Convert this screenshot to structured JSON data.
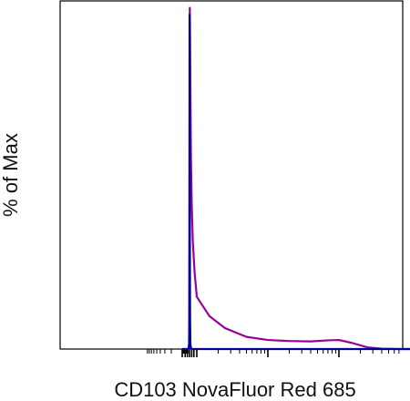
{
  "chart_data": {
    "type": "line",
    "title": "",
    "xlabel": "CD103 NovaFluor Red 685",
    "ylabel": "% of Max",
    "x_scale": "log",
    "xlim": [
      -1000,
      1000000
    ],
    "ylim": [
      0,
      100
    ],
    "x_tick_labels": [],
    "y_tick_labels": [],
    "grid": false,
    "legend": "none",
    "series": [
      {
        "color": "#000099",
        "x": [
          -1000,
          -300,
          -120,
          -60,
          -30,
          -10,
          0,
          10,
          25,
          50,
          80,
          120,
          200,
          350,
          600,
          1000,
          10000,
          1000000
        ],
        "y": [
          0,
          0,
          0.2,
          1.5,
          8,
          35,
          80,
          96,
          74,
          32,
          9,
          1.5,
          0.3,
          0,
          0,
          0,
          0,
          0
        ]
      },
      {
        "color": "#990099",
        "x": [
          -1000,
          -100,
          -40,
          -15,
          0,
          15,
          40,
          80,
          130,
          200,
          300,
          450,
          700,
          1000,
          1500,
          2500,
          5000,
          10000,
          20000,
          40000,
          70000,
          100000,
          150000,
          250000,
          400000,
          700000,
          1000000
        ],
        "y": [
          0,
          0,
          0.4,
          6,
          30,
          72,
          98,
          90,
          72,
          55,
          42,
          31,
          22,
          15,
          9.5,
          6,
          3.5,
          2.6,
          2.3,
          2.2,
          2.5,
          2.6,
          1.8,
          0.5,
          0.1,
          0,
          0
        ]
      }
    ]
  }
}
